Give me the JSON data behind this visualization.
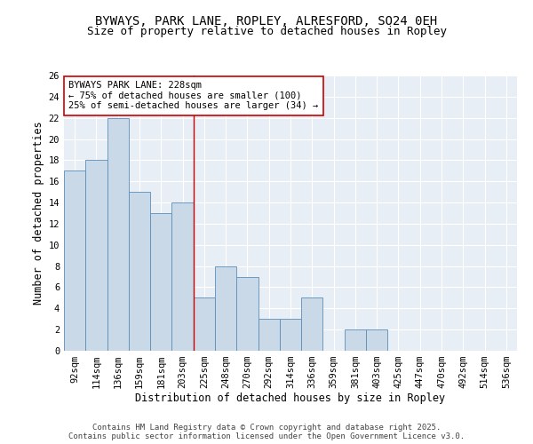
{
  "title_line1": "BYWAYS, PARK LANE, ROPLEY, ALRESFORD, SO24 0EH",
  "title_line2": "Size of property relative to detached houses in Ropley",
  "xlabel": "Distribution of detached houses by size in Ropley",
  "ylabel": "Number of detached properties",
  "categories": [
    "92sqm",
    "114sqm",
    "136sqm",
    "159sqm",
    "181sqm",
    "203sqm",
    "225sqm",
    "248sqm",
    "270sqm",
    "292sqm",
    "314sqm",
    "336sqm",
    "359sqm",
    "381sqm",
    "403sqm",
    "425sqm",
    "447sqm",
    "470sqm",
    "492sqm",
    "514sqm",
    "536sqm"
  ],
  "values": [
    17,
    18,
    22,
    15,
    13,
    14,
    5,
    8,
    7,
    3,
    3,
    5,
    0,
    2,
    2,
    0,
    0,
    0,
    0,
    0,
    0
  ],
  "bar_color": "#c9d9e8",
  "bar_edge_color": "#5b8db8",
  "vline_color": "#cc0000",
  "annotation_title": "BYWAYS PARK LANE: 228sqm",
  "annotation_line1": "← 75% of detached houses are smaller (100)",
  "annotation_line2": "25% of semi-detached houses are larger (34) →",
  "annotation_box_color": "#ffffff",
  "annotation_box_edge": "#cc0000",
  "ylim": [
    0,
    26
  ],
  "yticks": [
    0,
    2,
    4,
    6,
    8,
    10,
    12,
    14,
    16,
    18,
    20,
    22,
    24,
    26
  ],
  "background_color": "#e8eef5",
  "footer_line1": "Contains HM Land Registry data © Crown copyright and database right 2025.",
  "footer_line2": "Contains public sector information licensed under the Open Government Licence v3.0.",
  "title_fontsize": 10,
  "subtitle_fontsize": 9,
  "axis_label_fontsize": 8.5,
  "tick_fontsize": 7.5,
  "annotation_fontsize": 7.5,
  "footer_fontsize": 6.5
}
